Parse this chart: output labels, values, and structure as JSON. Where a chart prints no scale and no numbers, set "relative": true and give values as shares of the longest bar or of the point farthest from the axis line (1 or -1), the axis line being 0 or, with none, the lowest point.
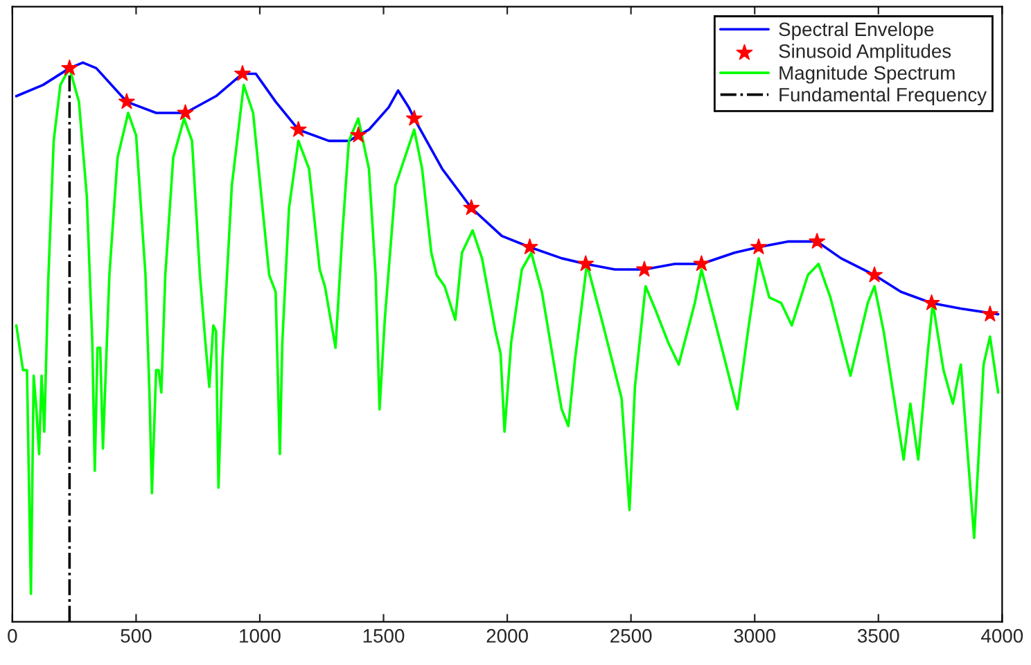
{
  "chart_data": {
    "type": "line",
    "relative": true,
    "xlim": [
      0,
      4000
    ],
    "xticks": [
      0,
      500,
      1000,
      1500,
      2000,
      2500,
      3000,
      3500,
      4000
    ],
    "grid": false,
    "legend": "top right",
    "series": [
      {
        "name": "Spectral Envelope",
        "type": "line",
        "color": "#0000ff",
        "line_style": "solid",
        "x": [
          16,
          124,
          231,
          285,
          339,
          462,
          581,
          699,
          823,
          930,
          984,
          1064,
          1156,
          1279,
          1360,
          1441,
          1521,
          1559,
          1602,
          1624,
          1737,
          1855,
          1978,
          2091,
          2220,
          2317,
          2435,
          2554,
          2677,
          2785,
          2919,
          3016,
          3134,
          3188,
          3252,
          3349,
          3484,
          3591,
          3715,
          3833,
          3984
        ],
        "values": [
          0.94,
          0.96,
          0.99,
          1.0,
          0.99,
          0.93,
          0.91,
          0.91,
          0.94,
          0.98,
          0.98,
          0.93,
          0.88,
          0.86,
          0.86,
          0.88,
          0.92,
          0.95,
          0.92,
          0.9,
          0.81,
          0.74,
          0.69,
          0.67,
          0.65,
          0.64,
          0.63,
          0.63,
          0.64,
          0.64,
          0.66,
          0.67,
          0.68,
          0.68,
          0.68,
          0.65,
          0.62,
          0.59,
          0.57,
          0.56,
          0.55
        ]
      },
      {
        "name": "Sinusoid Amplitudes",
        "type": "scatter",
        "color": "#ff0000",
        "marker": "star",
        "x": [
          231,
          462,
          699,
          930,
          1156,
          1398,
          1624,
          1855,
          2091,
          2317,
          2554,
          2785,
          3016,
          3252,
          3484,
          3715,
          3951
        ],
        "values": [
          0.99,
          0.93,
          0.91,
          0.98,
          0.88,
          0.87,
          0.9,
          0.74,
          0.67,
          0.64,
          0.63,
          0.64,
          0.67,
          0.68,
          0.62,
          0.57,
          0.55
        ]
      },
      {
        "name": "Magnitude Spectrum",
        "type": "line",
        "color": "#00ff00",
        "line_style": "solid",
        "x": [
          16,
          43,
          59,
          75,
          86,
          97,
          108,
          118,
          129,
          145,
          167,
          194,
          231,
          269,
          301,
          323,
          333,
          344,
          355,
          366,
          392,
          425,
          468,
          500,
          538,
          554,
          564,
          581,
          591,
          602,
          618,
          650,
          694,
          726,
          758,
          780,
          796,
          812,
          823,
          833,
          849,
          887,
          935,
          973,
          1011,
          1038,
          1064,
          1081,
          1091,
          1118,
          1156,
          1199,
          1242,
          1263,
          1306,
          1333,
          1360,
          1398,
          1441,
          1468,
          1484,
          1505,
          1548,
          1624,
          1656,
          1693,
          1715,
          1747,
          1790,
          1817,
          1860,
          1898,
          1952,
          1973,
          1989,
          2016,
          2059,
          2097,
          2140,
          2193,
          2204,
          2220,
          2247,
          2274,
          2322,
          2382,
          2462,
          2494,
          2516,
          2559,
          2597,
          2650,
          2693,
          2758,
          2785,
          2838,
          2930,
          2973,
          3016,
          3059,
          3107,
          3150,
          3215,
          3258,
          3306,
          3387,
          3457,
          3484,
          3521,
          3602,
          3629,
          3661,
          3699,
          3720,
          3763,
          3801,
          3833,
          3887,
          3925,
          3951,
          3984
        ],
        "values": [
          0.53,
          0.45,
          0.45,
          0.05,
          0.44,
          0.38,
          0.3,
          0.44,
          0.34,
          0.61,
          0.86,
          0.96,
          0.99,
          0.93,
          0.76,
          0.5,
          0.27,
          0.49,
          0.49,
          0.31,
          0.62,
          0.83,
          0.91,
          0.87,
          0.62,
          0.41,
          0.23,
          0.45,
          0.45,
          0.41,
          0.62,
          0.83,
          0.9,
          0.86,
          0.62,
          0.5,
          0.42,
          0.53,
          0.52,
          0.24,
          0.47,
          0.78,
          0.96,
          0.91,
          0.74,
          0.62,
          0.59,
          0.3,
          0.5,
          0.74,
          0.86,
          0.81,
          0.63,
          0.6,
          0.49,
          0.69,
          0.86,
          0.9,
          0.81,
          0.62,
          0.38,
          0.54,
          0.78,
          0.88,
          0.81,
          0.66,
          0.62,
          0.6,
          0.54,
          0.66,
          0.7,
          0.65,
          0.52,
          0.48,
          0.34,
          0.5,
          0.63,
          0.66,
          0.59,
          0.45,
          0.42,
          0.38,
          0.35,
          0.47,
          0.64,
          0.54,
          0.4,
          0.2,
          0.42,
          0.6,
          0.56,
          0.5,
          0.46,
          0.57,
          0.63,
          0.54,
          0.38,
          0.52,
          0.65,
          0.58,
          0.57,
          0.53,
          0.62,
          0.64,
          0.58,
          0.44,
          0.57,
          0.6,
          0.52,
          0.29,
          0.39,
          0.29,
          0.48,
          0.57,
          0.45,
          0.39,
          0.46,
          0.15,
          0.46,
          0.51,
          0.41
        ]
      },
      {
        "name": "Fundamental Frequency",
        "type": "line",
        "color": "#000000",
        "line_style": "dashdot",
        "x": [
          231,
          231
        ],
        "values": [
          0,
          0.99
        ]
      }
    ]
  }
}
